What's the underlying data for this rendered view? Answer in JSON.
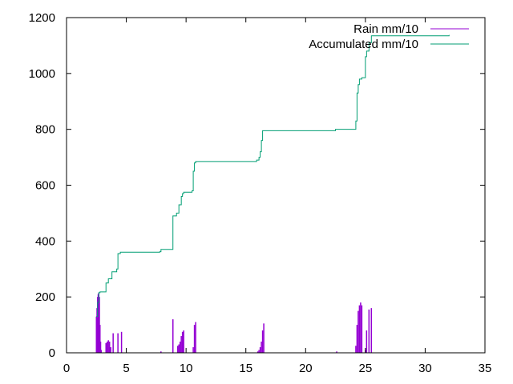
{
  "chart_data": {
    "type": "bar",
    "title": "",
    "xlabel": "",
    "ylabel": "",
    "xlim": [
      0,
      35
    ],
    "ylim": [
      0,
      1200
    ],
    "xticks": [
      0,
      5,
      10,
      15,
      20,
      25,
      30,
      35
    ],
    "yticks": [
      0,
      200,
      400,
      600,
      800,
      1000,
      1200
    ],
    "grid": false,
    "legend_position": "top-right",
    "series": [
      {
        "name": "Rain mm/10",
        "type": "impulses",
        "color": "#9400d3",
        "x": [
          2.5,
          2.55,
          2.6,
          2.65,
          2.7,
          2.75,
          2.8,
          2.85,
          2.9,
          3.3,
          3.4,
          3.5,
          3.6,
          3.7,
          3.9,
          4.3,
          4.6,
          7.9,
          8.9,
          9.3,
          9.4,
          9.5,
          9.6,
          9.7,
          9.8,
          10.6,
          10.7,
          10.8,
          16.0,
          16.1,
          16.2,
          16.3,
          16.4,
          16.5,
          22.6,
          24.2,
          24.3,
          24.4,
          24.5,
          24.6,
          24.7,
          25.0,
          25.1,
          25.3,
          25.5
        ],
        "values": [
          130,
          160,
          200,
          210,
          215,
          200,
          100,
          40,
          10,
          35,
          40,
          45,
          40,
          20,
          70,
          70,
          75,
          5,
          120,
          25,
          30,
          40,
          60,
          75,
          80,
          20,
          100,
          110,
          5,
          10,
          20,
          40,
          80,
          105,
          5,
          25,
          100,
          150,
          170,
          180,
          170,
          10,
          80,
          155,
          160
        ]
      },
      {
        "name": "Accumulated mm/10",
        "type": "steps",
        "color": "#009e73",
        "x": [
          2.5,
          2.6,
          2.7,
          2.8,
          3.3,
          3.5,
          3.8,
          4.2,
          4.3,
          4.5,
          7.8,
          7.9,
          8.9,
          9.2,
          9.4,
          9.6,
          9.7,
          9.8,
          10.5,
          10.6,
          10.7,
          10.8,
          15.9,
          16.1,
          16.2,
          16.3,
          16.4,
          22.5,
          24.2,
          24.3,
          24.4,
          24.5,
          24.7,
          25.0,
          25.1,
          25.3,
          25.5,
          32.0
        ],
        "values": [
          130,
          180,
          215,
          218,
          250,
          265,
          290,
          300,
          355,
          360,
          362,
          370,
          490,
          500,
          530,
          560,
          570,
          575,
          580,
          650,
          680,
          685,
          690,
          700,
          720,
          760,
          795,
          800,
          830,
          930,
          960,
          980,
          985,
          1060,
          1080,
          1110,
          1135,
          1138
        ]
      }
    ]
  }
}
